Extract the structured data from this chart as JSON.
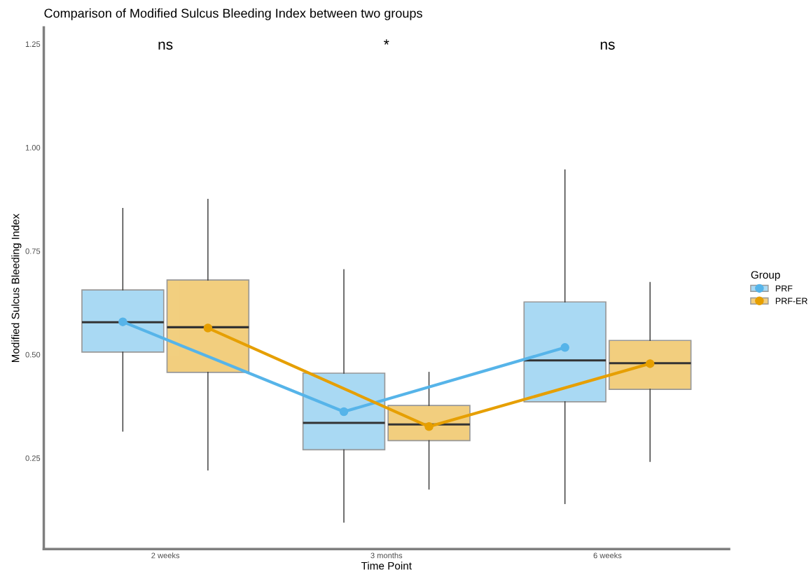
{
  "chart_data": {
    "type": "box",
    "title": "Comparison of Modified Sulcus Bleeding Index between two groups",
    "xlabel": "Time Point",
    "ylabel": "Modified Sulcus Bleeding Index",
    "legend_title": "Group",
    "categories": [
      "2 weeks",
      "3 months",
      "6 weeks"
    ],
    "series": [
      {
        "name": "PRF",
        "color": "#56b4e9",
        "boxes": [
          {
            "low": 0.315,
            "q1": 0.506,
            "median": 0.578,
            "q3": 0.656,
            "high": 0.853
          },
          {
            "low": 0.095,
            "q1": 0.27,
            "median": 0.335,
            "q3": 0.455,
            "high": 0.705
          },
          {
            "low": 0.14,
            "q1": 0.386,
            "median": 0.486,
            "q3": 0.627,
            "high": 0.946
          }
        ]
      },
      {
        "name": "PRF-ER",
        "color": "#e69f00",
        "boxes": [
          {
            "low": 0.221,
            "q1": 0.457,
            "median": 0.566,
            "q3": 0.68,
            "high": 0.875
          },
          {
            "low": 0.175,
            "q1": 0.292,
            "median": 0.331,
            "q3": 0.377,
            "high": 0.457
          },
          {
            "low": 0.242,
            "q1": 0.416,
            "median": 0.479,
            "q3": 0.534,
            "high": 0.674
          }
        ]
      },
      {
        "type": "line",
        "color": "#56b4e9",
        "values": [
          0.579,
          0.362,
          0.517
        ]
      },
      {
        "type": "line",
        "color": "#e69f00",
        "values": [
          0.564,
          0.326,
          0.478
        ]
      }
    ],
    "marker": "circle",
    "ylim": [
      0.03,
      1.29
    ],
    "yticks": [
      {
        "value": 0.25,
        "label": "0.25"
      },
      {
        "value": 0.5,
        "label": "0.50"
      },
      {
        "value": 0.75,
        "label": "0.75"
      },
      {
        "value": 1.0,
        "label": "1.00"
      },
      {
        "value": 1.25,
        "label": "1.25"
      }
    ],
    "grid": false,
    "legend": "right",
    "annotations": [
      "ns",
      "*",
      "ns"
    ]
  }
}
